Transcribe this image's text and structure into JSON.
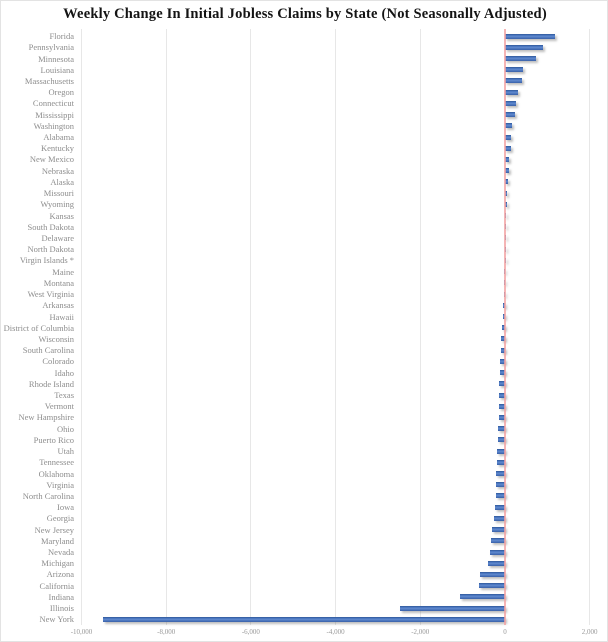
{
  "title": "Weekly Change In Initial Jobless Claims by State (Not Seasonally Adjusted)",
  "colors": {
    "bar": "#4472C4",
    "zero_line": "#F2A2A2",
    "gridline": "#E7E7E7",
    "label_text": "#8D8D8D",
    "title_text": "#141414"
  },
  "chart_data": {
    "type": "bar",
    "orientation": "horizontal",
    "title": "Weekly Change In Initial Jobless Claims by State (Not Seasonally Adjusted)",
    "xlabel": "",
    "ylabel": "",
    "xlim": [
      -10130,
      2410
    ],
    "grid": "vertical",
    "legend": "none",
    "zero_axis_highlighted": true,
    "x_ticks": [
      {
        "value": -10000,
        "label": "-10,000"
      },
      {
        "value": -8000,
        "label": "-8,000"
      },
      {
        "value": -6000,
        "label": "-6,000"
      },
      {
        "value": -4000,
        "label": "-4,000"
      },
      {
        "value": -2000,
        "label": "-2,000"
      },
      {
        "value": 0,
        "label": "0"
      },
      {
        "value": 2000,
        "label": "2,000"
      }
    ],
    "categories": [
      "Florida",
      "Pennsylvania",
      "Minnesota",
      "Louisiana",
      "Massachusetts",
      "Oregon",
      "Connecticut",
      "Mississippi",
      "Washington",
      "Alabama",
      "Kentucky",
      "New Mexico",
      "Nebraska",
      "Alaska",
      "Missouri",
      "Wyoming",
      "Kansas",
      "South Dakota",
      "Delaware",
      "North Dakota",
      "Virgin Islands *",
      "Maine",
      "Montana",
      "West Virginia",
      "Arkansas",
      "Hawaii",
      "District of Columbia",
      "Wisconsin",
      "South Carolina",
      "Colorado",
      "Idaho",
      "Rhode Island",
      "Texas",
      "Vermont",
      "New Hampshire",
      "Ohio",
      "Puerto Rico",
      "Utah",
      "Tennessee",
      "Oklahoma",
      "Virginia",
      "North Carolina",
      "Iowa",
      "Georgia",
      "New Jersey",
      "Maryland",
      "Nevada",
      "Michigan",
      "Arizona",
      "California",
      "Indiana",
      "Illinois",
      "New York"
    ],
    "values": [
      1180,
      910,
      730,
      420,
      395,
      320,
      260,
      230,
      160,
      145,
      140,
      90,
      85,
      65,
      55,
      45,
      35,
      30,
      25,
      15,
      10,
      -5,
      -15,
      -30,
      -40,
      -50,
      -60,
      -95,
      -105,
      -115,
      -125,
      -130,
      -135,
      -140,
      -150,
      -165,
      -175,
      -185,
      -195,
      -205,
      -215,
      -220,
      -225,
      -265,
      -305,
      -330,
      -350,
      -405,
      -580,
      -620,
      -1060,
      -2490,
      -9495
    ]
  }
}
